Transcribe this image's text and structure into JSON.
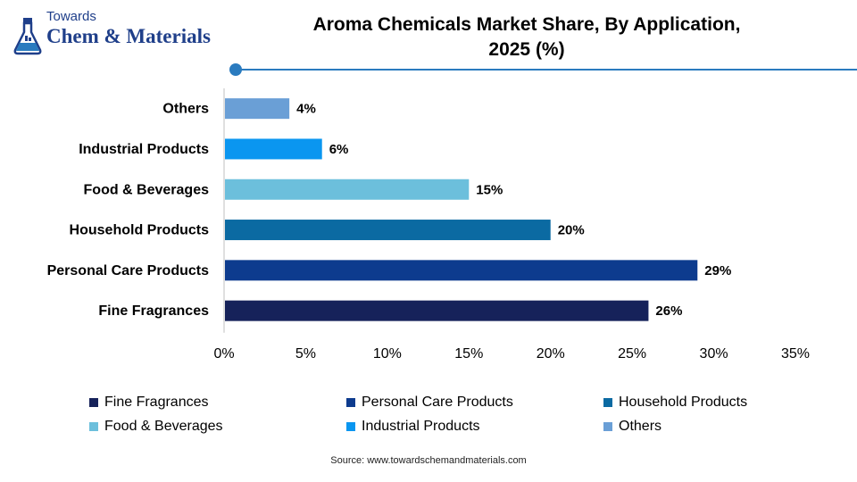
{
  "logo": {
    "line1": "Towards",
    "line2": "Chem & Materials",
    "icon": "flask-icon"
  },
  "source": "Source: www.towardschemandmaterials.com",
  "colors": {
    "accent": "#2a7bbf"
  },
  "chart_data": {
    "type": "bar",
    "orientation": "horizontal",
    "title": "Aroma Chemicals Market Share, By Application, 2025 (%)",
    "title_lines": [
      "Aroma Chemicals Market Share, By Application,",
      "2025 (%)"
    ],
    "categories": [
      "Others",
      "Industrial Products",
      "Food & Beverages",
      "Household Products",
      "Personal Care Products",
      "Fine Fragrances"
    ],
    "values": [
      4,
      6,
      15,
      20,
      29,
      26
    ],
    "data_labels": [
      "4%",
      "6%",
      "15%",
      "20%",
      "29%",
      "26%"
    ],
    "colors": [
      "#6a9fd6",
      "#0a96f0",
      "#6cbfdc",
      "#0b6aa2",
      "#0d3b8e",
      "#16225a"
    ],
    "xlim": [
      0,
      35
    ],
    "xticks": [
      0,
      5,
      10,
      15,
      20,
      25,
      30,
      35
    ],
    "xtick_labels": [
      "0%",
      "5%",
      "10%",
      "15%",
      "20%",
      "25%",
      "30%",
      "35%"
    ],
    "xlabel": "",
    "ylabel": "",
    "grid": false,
    "legend_position": "bottom",
    "legend": [
      {
        "label": "Fine Fragrances",
        "color": "#16225a"
      },
      {
        "label": "Personal Care Products",
        "color": "#0d3b8e"
      },
      {
        "label": "Household Products",
        "color": "#0b6aa2"
      },
      {
        "label": "Food & Beverages",
        "color": "#6cbfdc"
      },
      {
        "label": "Industrial Products",
        "color": "#0a96f0"
      },
      {
        "label": "Others",
        "color": "#6a9fd6"
      }
    ]
  }
}
